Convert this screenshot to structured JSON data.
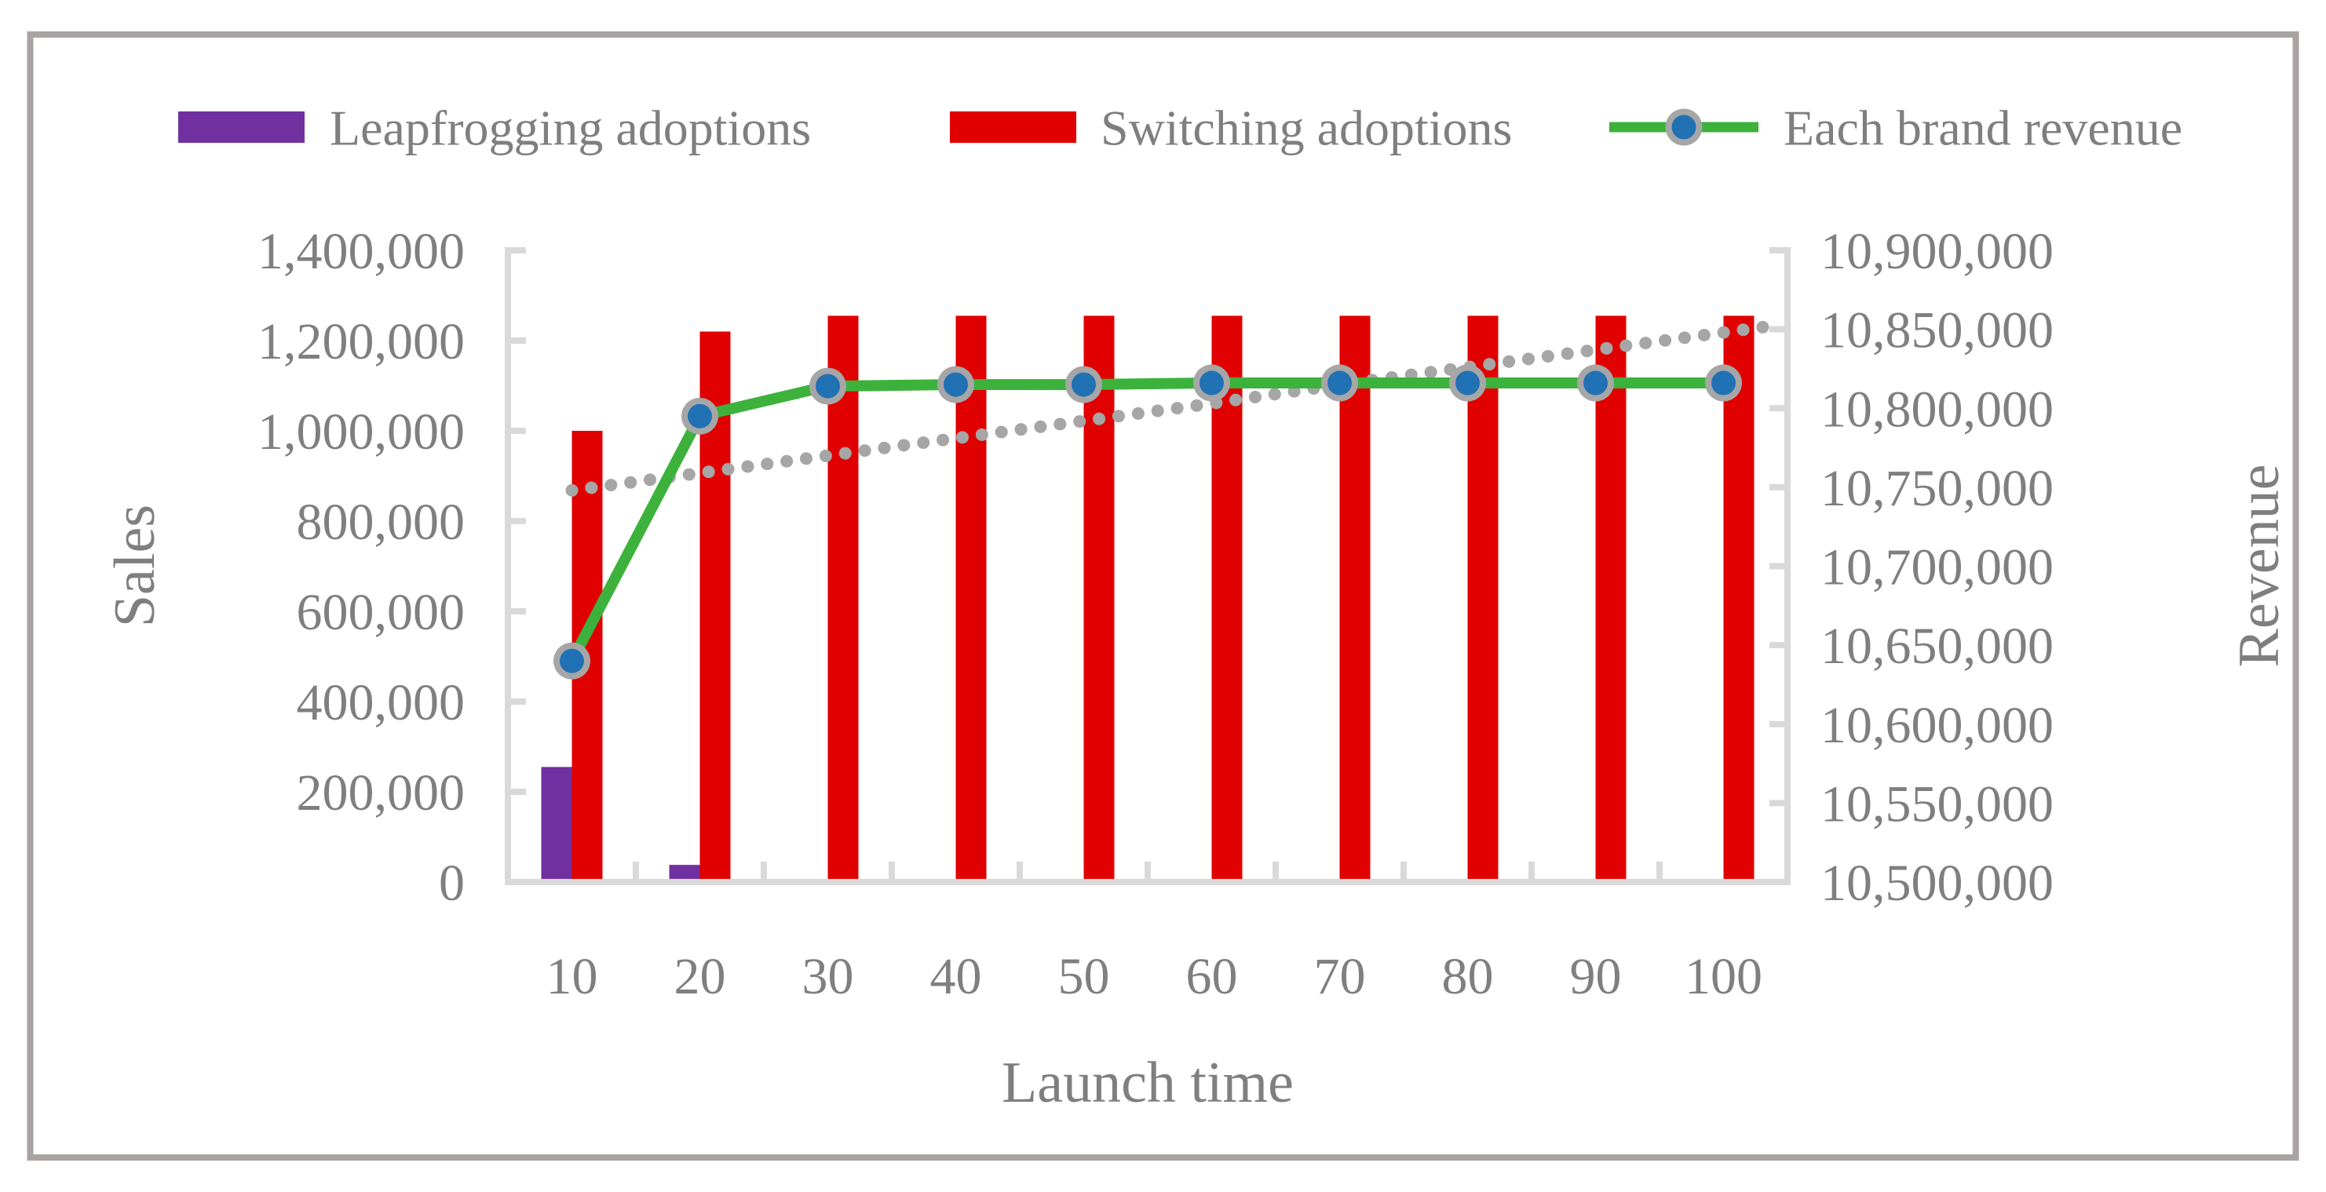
{
  "figure": {
    "border_color": "#a9a3a3",
    "background_color": "#ffffff",
    "text_color": "#7f7f7f",
    "axis_line_color": "#d9d9d9"
  },
  "legend": {
    "position": "top-center",
    "items": [
      {
        "label": "Leapfrogging adoptions",
        "swatch": "bar",
        "color": "#7030a0"
      },
      {
        "label": "Switching adoptions",
        "swatch": "bar",
        "color": "#e00000"
      },
      {
        "label": "Each brand revenue",
        "swatch": "line-marker",
        "line_color": "#3cb23c",
        "marker_fill": "#2171b5",
        "marker_ring": "#a6a6a6"
      }
    ]
  },
  "chart_data": {
    "type": "combo (grouped bars + line, dual y-axis)",
    "categories": [
      10,
      20,
      30,
      40,
      50,
      60,
      70,
      80,
      90,
      100
    ],
    "series": [
      {
        "name": "Leapfrogging adoptions",
        "type": "bar",
        "axis": "left",
        "color": "#7030a0",
        "values": [
          255000,
          38000,
          0,
          0,
          0,
          0,
          0,
          0,
          0,
          0
        ]
      },
      {
        "name": "Switching adoptions",
        "type": "bar",
        "axis": "left",
        "color": "#e00000",
        "values": [
          1000000,
          1220000,
          1255000,
          1255000,
          1255000,
          1255000,
          1255000,
          1255000,
          1255000,
          1255000
        ]
      },
      {
        "name": "Each brand revenue",
        "type": "line",
        "axis": "right",
        "line_color": "#3cb23c",
        "marker_fill": "#2171b5",
        "marker_ring": "#a6a6a6",
        "values": [
          10640000,
          10795000,
          10814000,
          10815000,
          10815000,
          10816000,
          10816000,
          10816000,
          10816000,
          10816000
        ]
      },
      {
        "name": "dotted trendline (unlabeled, not in legend)",
        "type": "dotted-line",
        "axis": "right",
        "color": "#a6a6a6",
        "values": [
          10748000,
          10759000,
          10770000,
          10781000,
          10792000,
          10803000,
          10815000,
          10826000,
          10837000,
          10848000
        ]
      }
    ],
    "left_axis": {
      "title": "Sales",
      "min": 0,
      "max": 1400000,
      "step": 200000,
      "tick_labels": [
        "0",
        "200,000",
        "400,000",
        "600,000",
        "800,000",
        "1,000,000",
        "1,200,000",
        "1,400,000"
      ]
    },
    "right_axis": {
      "title": "Revenue",
      "min": 10500000,
      "max": 10900000,
      "step": 50000,
      "tick_labels": [
        "10,500,000",
        "10,550,000",
        "10,600,000",
        "10,650,000",
        "10,700,000",
        "10,750,000",
        "10,800,000",
        "10,850,000",
        "10,900,000"
      ]
    },
    "x_axis": {
      "title": "Launch time",
      "tick_labels": [
        "10",
        "20",
        "30",
        "40",
        "50",
        "60",
        "70",
        "80",
        "90",
        "100"
      ]
    },
    "grid": false,
    "legend_position": "top"
  }
}
